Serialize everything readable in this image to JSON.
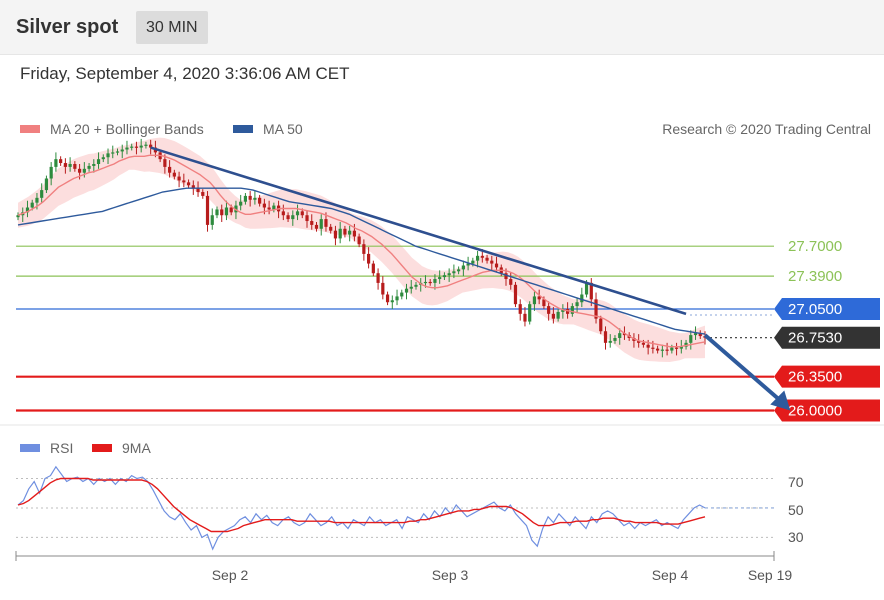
{
  "header": {
    "title": "Silver spot",
    "timeframe": "30 MIN"
  },
  "datetime": "Friday, September 4, 2020 3:36:06 AM CET",
  "legend": {
    "ma20": "MA 20 + Bollinger Bands",
    "ma50": "MA 50",
    "credit": "Research © 2020 Trading Central"
  },
  "rsi_legend": {
    "rsi": "RSI",
    "ma9": "9MA"
  },
  "colors": {
    "ma20": "#f08080",
    "ma50": "#2e5a9c",
    "bands": "#fbd3d3",
    "support": "#e31b1b",
    "resistance_green": "#8cc257",
    "pivot_blue": "#2e6ad8",
    "current": "#333333",
    "candle_up": "#2e8b3e",
    "candle_down": "#b71c1c",
    "rsi": "#6f8fe0"
  },
  "chart_data": [
    {
      "type": "candlestick",
      "title": "Silver spot",
      "x_ticks": [
        "Sep 2",
        "Sep 3",
        "Sep 4",
        "Sep 19"
      ],
      "ylim": [
        25.85,
        28.85
      ],
      "levels": [
        {
          "label": "27.7000",
          "value": 27.7,
          "color": "#8cc257",
          "style": "text"
        },
        {
          "label": "27.3900",
          "value": 27.39,
          "color": "#8cc257",
          "style": "text"
        },
        {
          "label": "27.0500",
          "value": 27.05,
          "color": "#2e6ad8",
          "style": "box"
        },
        {
          "label": "26.7530",
          "value": 26.753,
          "color": "#333333",
          "style": "box"
        },
        {
          "label": "26.3500",
          "value": 26.35,
          "color": "#e31b1b",
          "style": "box"
        },
        {
          "label": "26.0000",
          "value": 26.0,
          "color": "#e31b1b",
          "style": "box"
        }
      ],
      "close": [
        28.02,
        28.05,
        28.1,
        28.15,
        28.2,
        28.28,
        28.4,
        28.52,
        28.6,
        28.56,
        28.52,
        28.55,
        28.5,
        28.46,
        28.5,
        28.53,
        28.55,
        28.6,
        28.62,
        28.66,
        28.67,
        28.68,
        28.7,
        28.72,
        28.73,
        28.72,
        28.74,
        28.75,
        28.72,
        28.67,
        28.6,
        28.52,
        28.46,
        28.42,
        28.38,
        28.36,
        28.33,
        28.3,
        28.26,
        28.22,
        27.92,
        28.02,
        28.08,
        28.02,
        28.1,
        28.05,
        28.12,
        28.16,
        28.22,
        28.18,
        28.2,
        28.14,
        28.1,
        28.08,
        28.12,
        28.06,
        28.02,
        27.98,
        28.02,
        28.06,
        28.02,
        27.96,
        27.92,
        27.88,
        27.98,
        27.9,
        27.86,
        27.78,
        27.88,
        27.82,
        27.86,
        27.8,
        27.72,
        27.62,
        27.52,
        27.42,
        27.32,
        27.2,
        27.12,
        27.14,
        27.18,
        27.22,
        27.26,
        27.28,
        27.3,
        27.32,
        27.33,
        27.32,
        27.36,
        27.38,
        27.4,
        27.42,
        27.44,
        27.46,
        27.5,
        27.52,
        27.55,
        27.6,
        27.58,
        27.55,
        27.52,
        27.48,
        27.42,
        27.36,
        27.3,
        27.1,
        27.0,
        26.92,
        27.1,
        27.18,
        27.15,
        27.08,
        27.0,
        26.95,
        27.02,
        27.05,
        27.0,
        27.08,
        27.12,
        27.2,
        27.32,
        27.15,
        26.95,
        26.82,
        26.7,
        26.72,
        26.75,
        26.8,
        26.78,
        26.75,
        26.72,
        26.7,
        26.68,
        26.65,
        26.64,
        26.62,
        26.63,
        26.62,
        26.65,
        26.64,
        26.66,
        26.7,
        26.78,
        26.8,
        26.77,
        26.753
      ],
      "ma20": [
        28.02,
        28.04,
        28.06,
        28.09,
        28.12,
        28.16,
        28.21,
        28.26,
        28.31,
        28.34,
        28.37,
        28.4,
        28.42,
        28.44,
        28.46,
        28.47,
        28.49,
        28.51,
        28.53,
        28.55,
        28.58,
        28.6,
        28.62,
        28.63,
        28.63,
        28.63,
        28.64,
        28.64,
        28.64,
        28.63,
        28.61,
        28.59,
        28.56,
        28.53,
        28.5,
        28.47,
        28.44,
        28.4,
        28.36,
        28.3,
        28.23,
        28.17,
        28.12,
        28.08,
        28.05,
        28.03,
        28.03,
        28.04,
        28.05,
        28.06,
        28.07,
        28.08,
        28.09,
        28.09,
        28.09,
        28.09,
        28.08,
        28.07,
        28.06,
        28.05,
        28.04,
        28.02,
        28.0,
        27.98,
        27.96,
        27.94,
        27.91,
        27.88,
        27.86,
        27.83,
        27.8,
        27.76,
        27.72,
        27.67,
        27.62,
        27.56,
        27.5,
        27.44,
        27.38,
        27.34,
        27.3,
        27.28,
        27.27,
        27.27,
        27.28,
        27.29,
        27.31,
        27.33,
        27.35,
        27.37,
        27.39,
        27.41,
        27.43,
        27.44,
        27.45,
        27.45,
        27.45,
        27.44,
        27.42,
        27.39,
        27.35,
        27.3,
        27.25,
        27.2,
        27.16,
        27.12,
        27.09,
        27.06,
        27.04,
        27.03,
        27.02,
        27.01,
        27.0,
        26.99,
        26.98,
        26.97,
        26.95,
        26.92,
        26.88,
        26.84,
        26.8,
        26.77,
        26.74,
        26.72,
        26.71,
        26.7,
        26.69,
        26.68,
        26.67,
        26.66,
        26.66,
        26.66,
        26.67,
        26.68,
        26.69,
        26.7,
        26.71
      ],
      "ma50": [
        27.92,
        27.93,
        27.94,
        27.95,
        27.96,
        27.97,
        27.98,
        27.99,
        28.0,
        28.01,
        28.02,
        28.03,
        28.04,
        28.05,
        28.06,
        28.08,
        28.1,
        28.12,
        28.14,
        28.16,
        28.18,
        28.2,
        28.22,
        28.24,
        28.26,
        28.27,
        28.28,
        28.29,
        28.3,
        28.3,
        28.3,
        28.3,
        28.3,
        28.3,
        28.3,
        28.3,
        28.3,
        28.3,
        28.29,
        28.28,
        28.26,
        28.24,
        28.22,
        28.2,
        28.18,
        28.16,
        28.15,
        28.14,
        28.13,
        28.12,
        28.11,
        28.1,
        28.09,
        28.07,
        28.05,
        28.03,
        28.0,
        27.97,
        27.94,
        27.91,
        27.88,
        27.85,
        27.82,
        27.79,
        27.76,
        27.73,
        27.7,
        27.68,
        27.66,
        27.64,
        27.62,
        27.6,
        27.58,
        27.56,
        27.54,
        27.52,
        27.5,
        27.48,
        27.46,
        27.44,
        27.42,
        27.4,
        27.38,
        27.36,
        27.34,
        27.32,
        27.3,
        27.28,
        27.26,
        27.24,
        27.22,
        27.2,
        27.18,
        27.16,
        27.14,
        27.12,
        27.1,
        27.08,
        27.06,
        27.04,
        27.02,
        27.0,
        26.98,
        26.96,
        26.94,
        26.92,
        26.9,
        26.88,
        26.86,
        26.84,
        26.83,
        26.82,
        26.81,
        26.8,
        26.79
      ],
      "trendline": [
        {
          "index": 28,
          "value": 28.72
        },
        {
          "index": 141,
          "value": 27.0
        }
      ],
      "forecast_arrow": [
        {
          "index": 145,
          "value": 26.78
        },
        {
          "index": 163,
          "value": 26.0
        }
      ]
    },
    {
      "type": "line",
      "title": "RSI",
      "ylim": [
        18,
        86
      ],
      "y_ticks": [
        70,
        50,
        30
      ],
      "series": [
        {
          "name": "RSI",
          "values": [
            52,
            55,
            63,
            68,
            60,
            70,
            72,
            78,
            73,
            68,
            70,
            71,
            68,
            70,
            66,
            70,
            68,
            70,
            66,
            70,
            68,
            72,
            70,
            71,
            68,
            62,
            55,
            48,
            44,
            42,
            46,
            40,
            35,
            38,
            30,
            32,
            22,
            30,
            34,
            36,
            38,
            42,
            44,
            40,
            46,
            42,
            45,
            40,
            38,
            42,
            44,
            40,
            38,
            40,
            46,
            42,
            38,
            40,
            44,
            38,
            40,
            36,
            42,
            40,
            38,
            44,
            40,
            42,
            38,
            40,
            42,
            36,
            44,
            42,
            40,
            46,
            42,
            48,
            44,
            50,
            46,
            52,
            48,
            44,
            46,
            48,
            50,
            52,
            54,
            50,
            48,
            52,
            46,
            42,
            38,
            28,
            24,
            36,
            44,
            40,
            46,
            42,
            38,
            44,
            40,
            36,
            44,
            40,
            46,
            48,
            46,
            42,
            38,
            40,
            36,
            40,
            38,
            40,
            42,
            38,
            40,
            38,
            36,
            42,
            46,
            50,
            52,
            50
          ]
        },
        {
          "name": "9MA",
          "values": [
            52,
            53,
            55,
            58,
            61,
            64,
            67,
            69,
            70,
            70,
            70,
            70,
            70,
            70,
            69,
            69,
            69,
            69,
            69,
            69,
            69,
            69,
            69,
            69,
            68,
            66,
            63,
            59,
            55,
            51,
            48,
            45,
            42,
            40,
            38,
            36,
            34,
            34,
            34,
            34,
            35,
            36,
            38,
            39,
            40,
            41,
            42,
            42,
            42,
            42,
            42,
            42,
            41,
            41,
            41,
            41,
            41,
            41,
            41,
            40,
            40,
            40,
            40,
            40,
            40,
            40,
            40,
            40,
            40,
            40,
            40,
            40,
            40,
            41,
            41,
            42,
            42,
            43,
            44,
            45,
            46,
            47,
            48,
            48,
            48,
            49,
            49,
            50,
            51,
            51,
            51,
            51,
            50,
            48,
            46,
            43,
            40,
            38,
            38,
            38,
            39,
            40,
            40,
            40,
            41,
            41,
            41,
            42,
            42,
            43,
            43,
            43,
            42,
            41,
            41,
            40,
            40,
            40,
            40,
            40,
            39,
            39,
            39,
            39,
            40,
            41,
            42,
            43,
            44
          ]
        }
      ]
    }
  ]
}
